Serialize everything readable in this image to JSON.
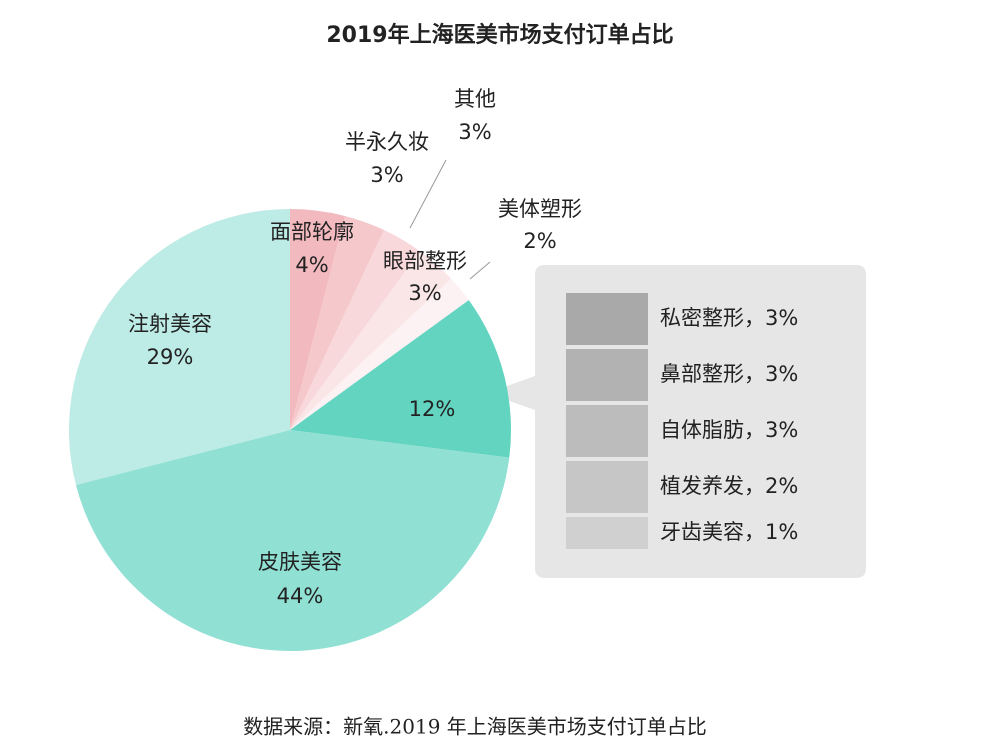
{
  "chart_data": {
    "type": "pie",
    "title": "2019年上海医美市场支付订单占比",
    "categories": [
      "面部轮廓",
      "半永久妆",
      "其他",
      "眼部整形",
      "美体塑形",
      null,
      "皮肤美容",
      "注射美容"
    ],
    "values": [
      4,
      3,
      3,
      3,
      2,
      12,
      44,
      29
    ],
    "value_labels": [
      "4%",
      "3%",
      "3%",
      "3%",
      "2%",
      "12%",
      "44%",
      "29%"
    ],
    "colors": [
      "#f2b9be",
      "#f5c8cb",
      "#f8d8da",
      "#fae5e7",
      "#fdf2f3",
      "#62d4c0",
      "#90e0d4",
      "#bdebe5"
    ],
    "breakdown": {
      "labels": [
        "私密整形，3%",
        "鼻部整形，3%",
        "自体脂肪，3%",
        "植发养发，2%",
        "牙齿美容，1%"
      ],
      "values": [
        3,
        3,
        3,
        2,
        1
      ],
      "colors": [
        "#a9a9a9",
        "#b2b2b2",
        "#bcbcbc",
        "#c6c6c6",
        "#d0d0d0"
      ]
    },
    "source": "数据来源：新氧.2019 年上海医美市场支付订单占比"
  }
}
